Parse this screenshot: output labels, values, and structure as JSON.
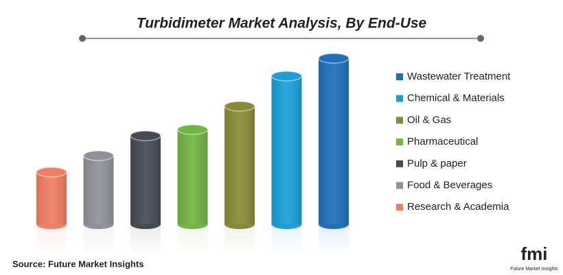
{
  "chart_data": {
    "type": "cylinder-bar",
    "title": "Turbidimeter Market Analysis, By End-Use",
    "categories": [
      "Research & Academia",
      "Food & Beverages",
      "Pulp & paper",
      "Pharmaceutical",
      "Oil & Gas",
      "Chemical & Materials",
      "Wastewater Treatment"
    ],
    "values": [
      76,
      100,
      129,
      138,
      172,
      216,
      242
    ],
    "colors": [
      "#f07e62",
      "#8e9196",
      "#464a52",
      "#72b543",
      "#888a35",
      "#1b9ed9",
      "#1f6fba"
    ],
    "ylim": [
      0,
      250
    ],
    "legend": "right",
    "source": "Source: Future Market Insights"
  },
  "logo": {
    "mark": "fmi",
    "name": "Future Market Insights"
  }
}
